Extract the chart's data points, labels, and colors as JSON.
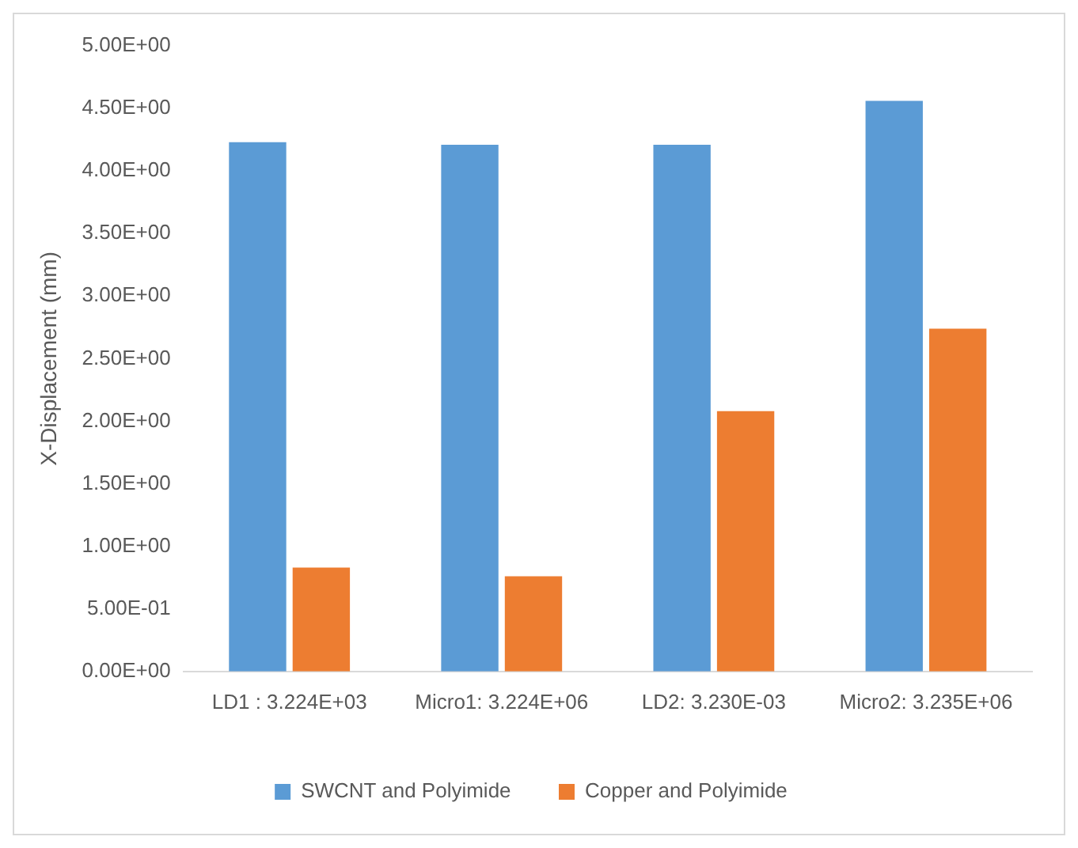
{
  "chart_data": {
    "type": "bar",
    "ylabel": "X-Displacement (mm)",
    "categories": [
      "LD1 : 3.224E+03",
      "Micro1: 3.224E+06",
      "LD2: 3.230E-03",
      "Micro2: 3.235E+06"
    ],
    "series": [
      {
        "name": "SWCNT and Polyimide",
        "color": "#5b9bd5",
        "values": [
          4.23,
          4.21,
          4.21,
          4.56
        ]
      },
      {
        "name": "Copper and Polyimide",
        "color": "#ed7d31",
        "values": [
          0.83,
          0.76,
          2.08,
          2.74
        ]
      }
    ],
    "ylim": [
      0,
      5
    ],
    "yticks": [
      {
        "value": 0,
        "label": "0.00E+00"
      },
      {
        "value": 0.5,
        "label": "5.00E-01"
      },
      {
        "value": 1,
        "label": "1.00E+00"
      },
      {
        "value": 1.5,
        "label": "1.50E+00"
      },
      {
        "value": 2,
        "label": "2.00E+00"
      },
      {
        "value": 2.5,
        "label": "2.50E+00"
      },
      {
        "value": 3,
        "label": "3.00E+00"
      },
      {
        "value": 3.5,
        "label": "3.50E+00"
      },
      {
        "value": 4,
        "label": "4.00E+00"
      },
      {
        "value": 4.5,
        "label": "4.50E+00"
      },
      {
        "value": 5,
        "label": "5.00E+00"
      }
    ],
    "grid": false,
    "legend": "bottom"
  }
}
